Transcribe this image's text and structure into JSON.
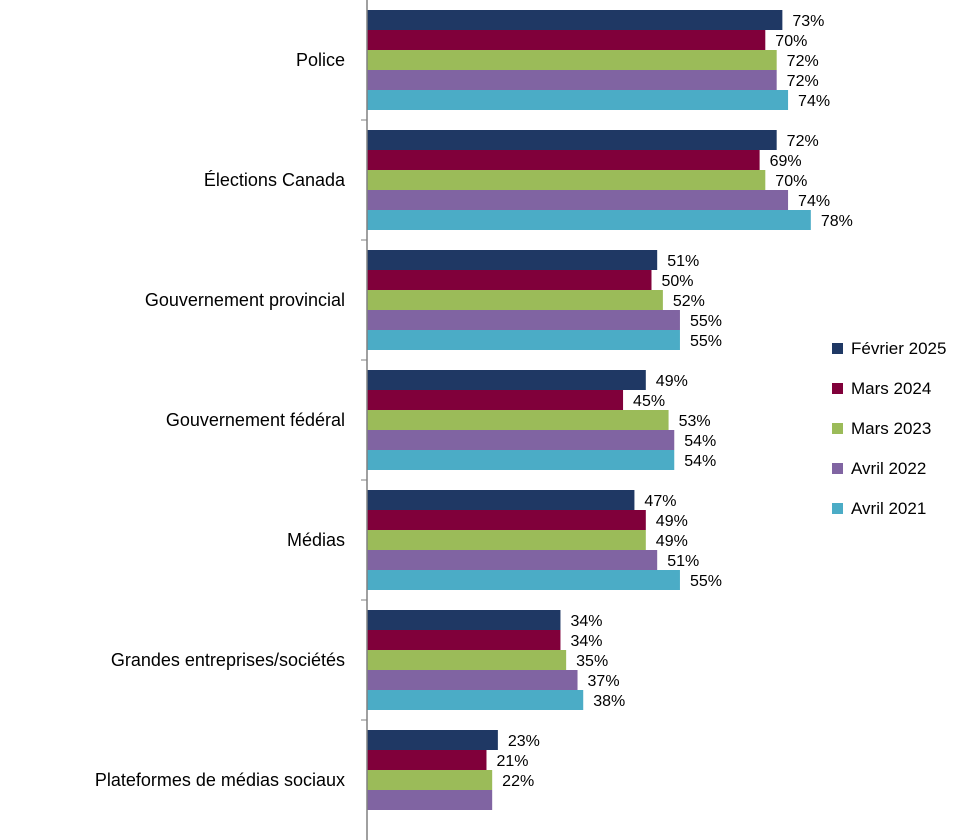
{
  "chart_data": {
    "type": "bar",
    "orientation": "horizontal",
    "categories": [
      "Police",
      "Élections Canada",
      "Gouvernement provincial",
      "Gouvernement fédéral",
      "Médias",
      "Grandes entreprises/sociétés",
      "Plateformes de médias sociaux"
    ],
    "series": [
      {
        "name": "Février 2025",
        "color": "#1F3864",
        "values": [
          73,
          72,
          51,
          49,
          47,
          34,
          23
        ],
        "labels": [
          "73%",
          "72%",
          "51%",
          "49%",
          "47%",
          "34%",
          "23%"
        ]
      },
      {
        "name": "Mars 2024",
        "color": "#80003A",
        "values": [
          70,
          69,
          50,
          45,
          49,
          34,
          21
        ],
        "labels": [
          "70%",
          "69%",
          "50%",
          "45%",
          "49%",
          "34%",
          "21%"
        ]
      },
      {
        "name": "Mars 2023",
        "color": "#9BBB59",
        "values": [
          72,
          70,
          52,
          53,
          49,
          35,
          22
        ],
        "labels": [
          "72%",
          "70%",
          "52%",
          "53%",
          "49%",
          "35%",
          "22%"
        ]
      },
      {
        "name": "Avril 2022",
        "color": "#8064A2",
        "values": [
          72,
          74,
          55,
          54,
          51,
          37,
          22
        ],
        "labels": [
          "72%",
          "74%",
          "55%",
          "54%",
          "51%",
          "37%",
          ""
        ]
      },
      {
        "name": "Avril 2021",
        "color": "#4BACC6",
        "values": [
          74,
          78,
          55,
          54,
          55,
          38,
          null
        ],
        "labels": [
          "74%",
          "78%",
          "55%",
          "54%",
          "55%",
          "38%",
          ""
        ]
      }
    ],
    "xlim": [
      0,
      100
    ],
    "legend_position": "right",
    "grid": false,
    "axis_color": "#808080"
  }
}
